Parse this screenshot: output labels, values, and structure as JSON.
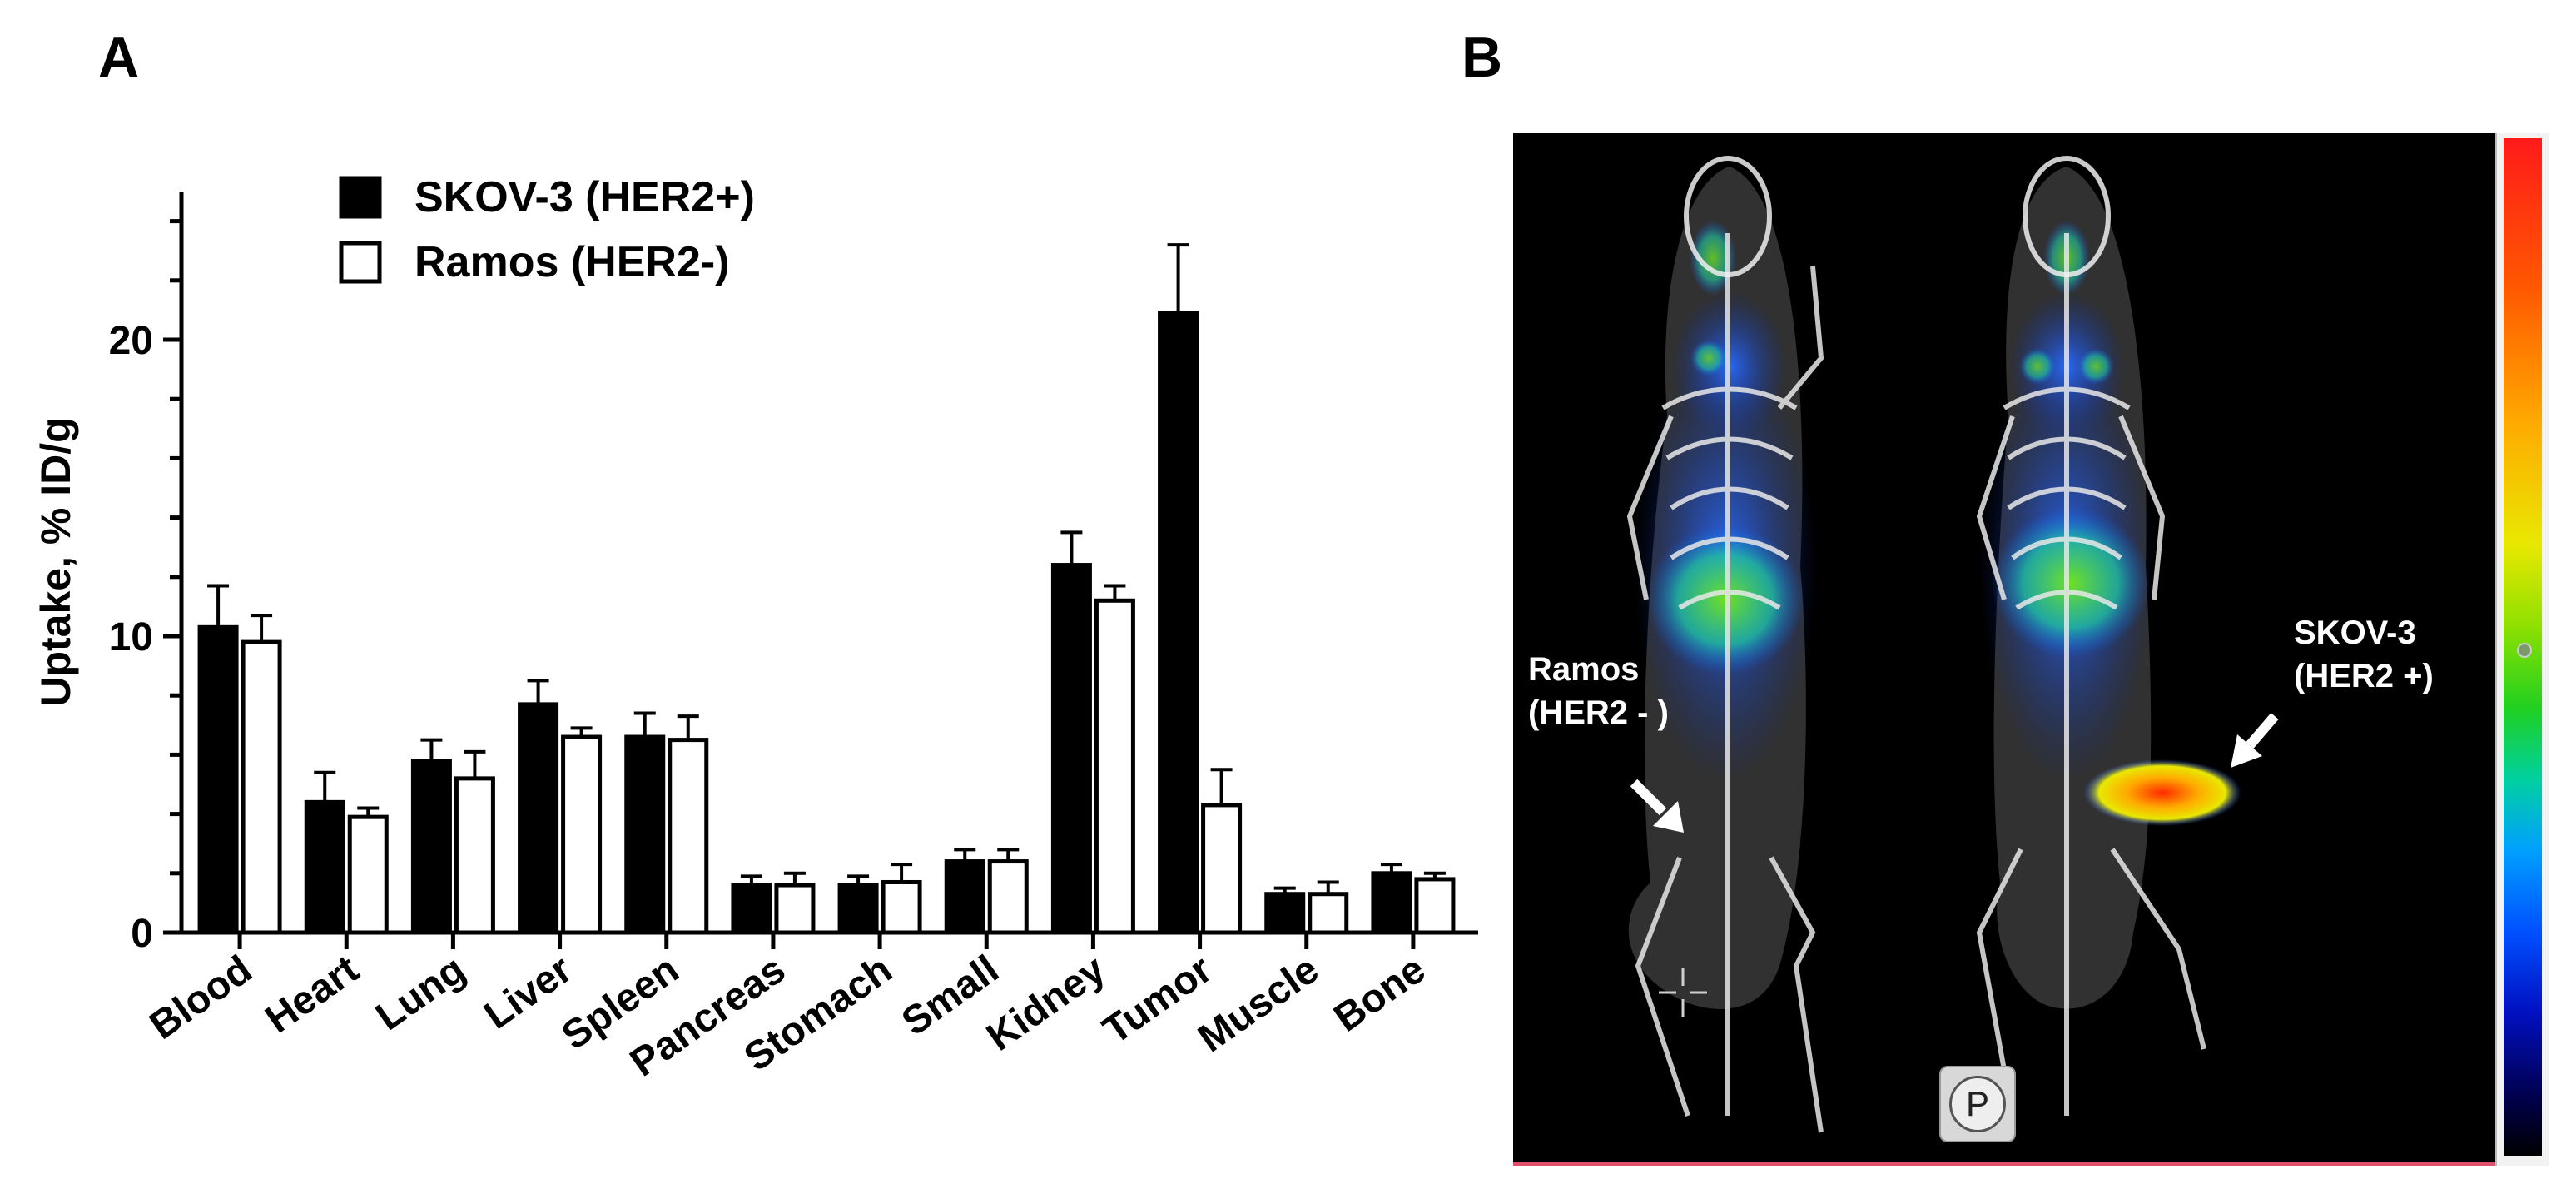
{
  "panels": {
    "a": "A",
    "b": "B"
  },
  "chart_data": {
    "type": "bar",
    "title": "",
    "xlabel": "",
    "ylabel": "Uptake, % ID/g",
    "ylim": [
      0,
      25
    ],
    "yticks": [
      0,
      10,
      20
    ],
    "grid": false,
    "legend_position": "top-left",
    "categories": [
      "Blood",
      "Heart",
      "Lung",
      "Liver",
      "Spleen",
      "Pancreas",
      "Stomach",
      "Small",
      "Kidney",
      "Tumor",
      "Muscle",
      "Bone"
    ],
    "series": [
      {
        "name": "SKOV-3 (HER2+)",
        "color": "#000000",
        "values": [
          10.3,
          4.4,
          5.8,
          7.7,
          6.6,
          1.6,
          1.6,
          2.4,
          12.4,
          20.9,
          1.3,
          2.0
        ],
        "errors": [
          1.4,
          1.0,
          0.7,
          0.8,
          0.8,
          0.3,
          0.3,
          0.4,
          1.1,
          2.3,
          0.2,
          0.3
        ]
      },
      {
        "name": "Ramos (HER2-)",
        "color": "#ffffff",
        "values": [
          9.8,
          3.9,
          5.2,
          6.6,
          6.5,
          1.6,
          1.7,
          2.4,
          11.2,
          4.3,
          1.3,
          1.8
        ],
        "errors": [
          0.9,
          0.3,
          0.9,
          0.3,
          0.8,
          0.4,
          0.6,
          0.4,
          0.5,
          1.2,
          0.4,
          0.2
        ]
      }
    ]
  },
  "image_panel": {
    "annotations": {
      "ramos": "Ramos\n(HER2 - )",
      "skov": "SKOV-3\n(HER2 +)"
    },
    "badge": "P"
  }
}
